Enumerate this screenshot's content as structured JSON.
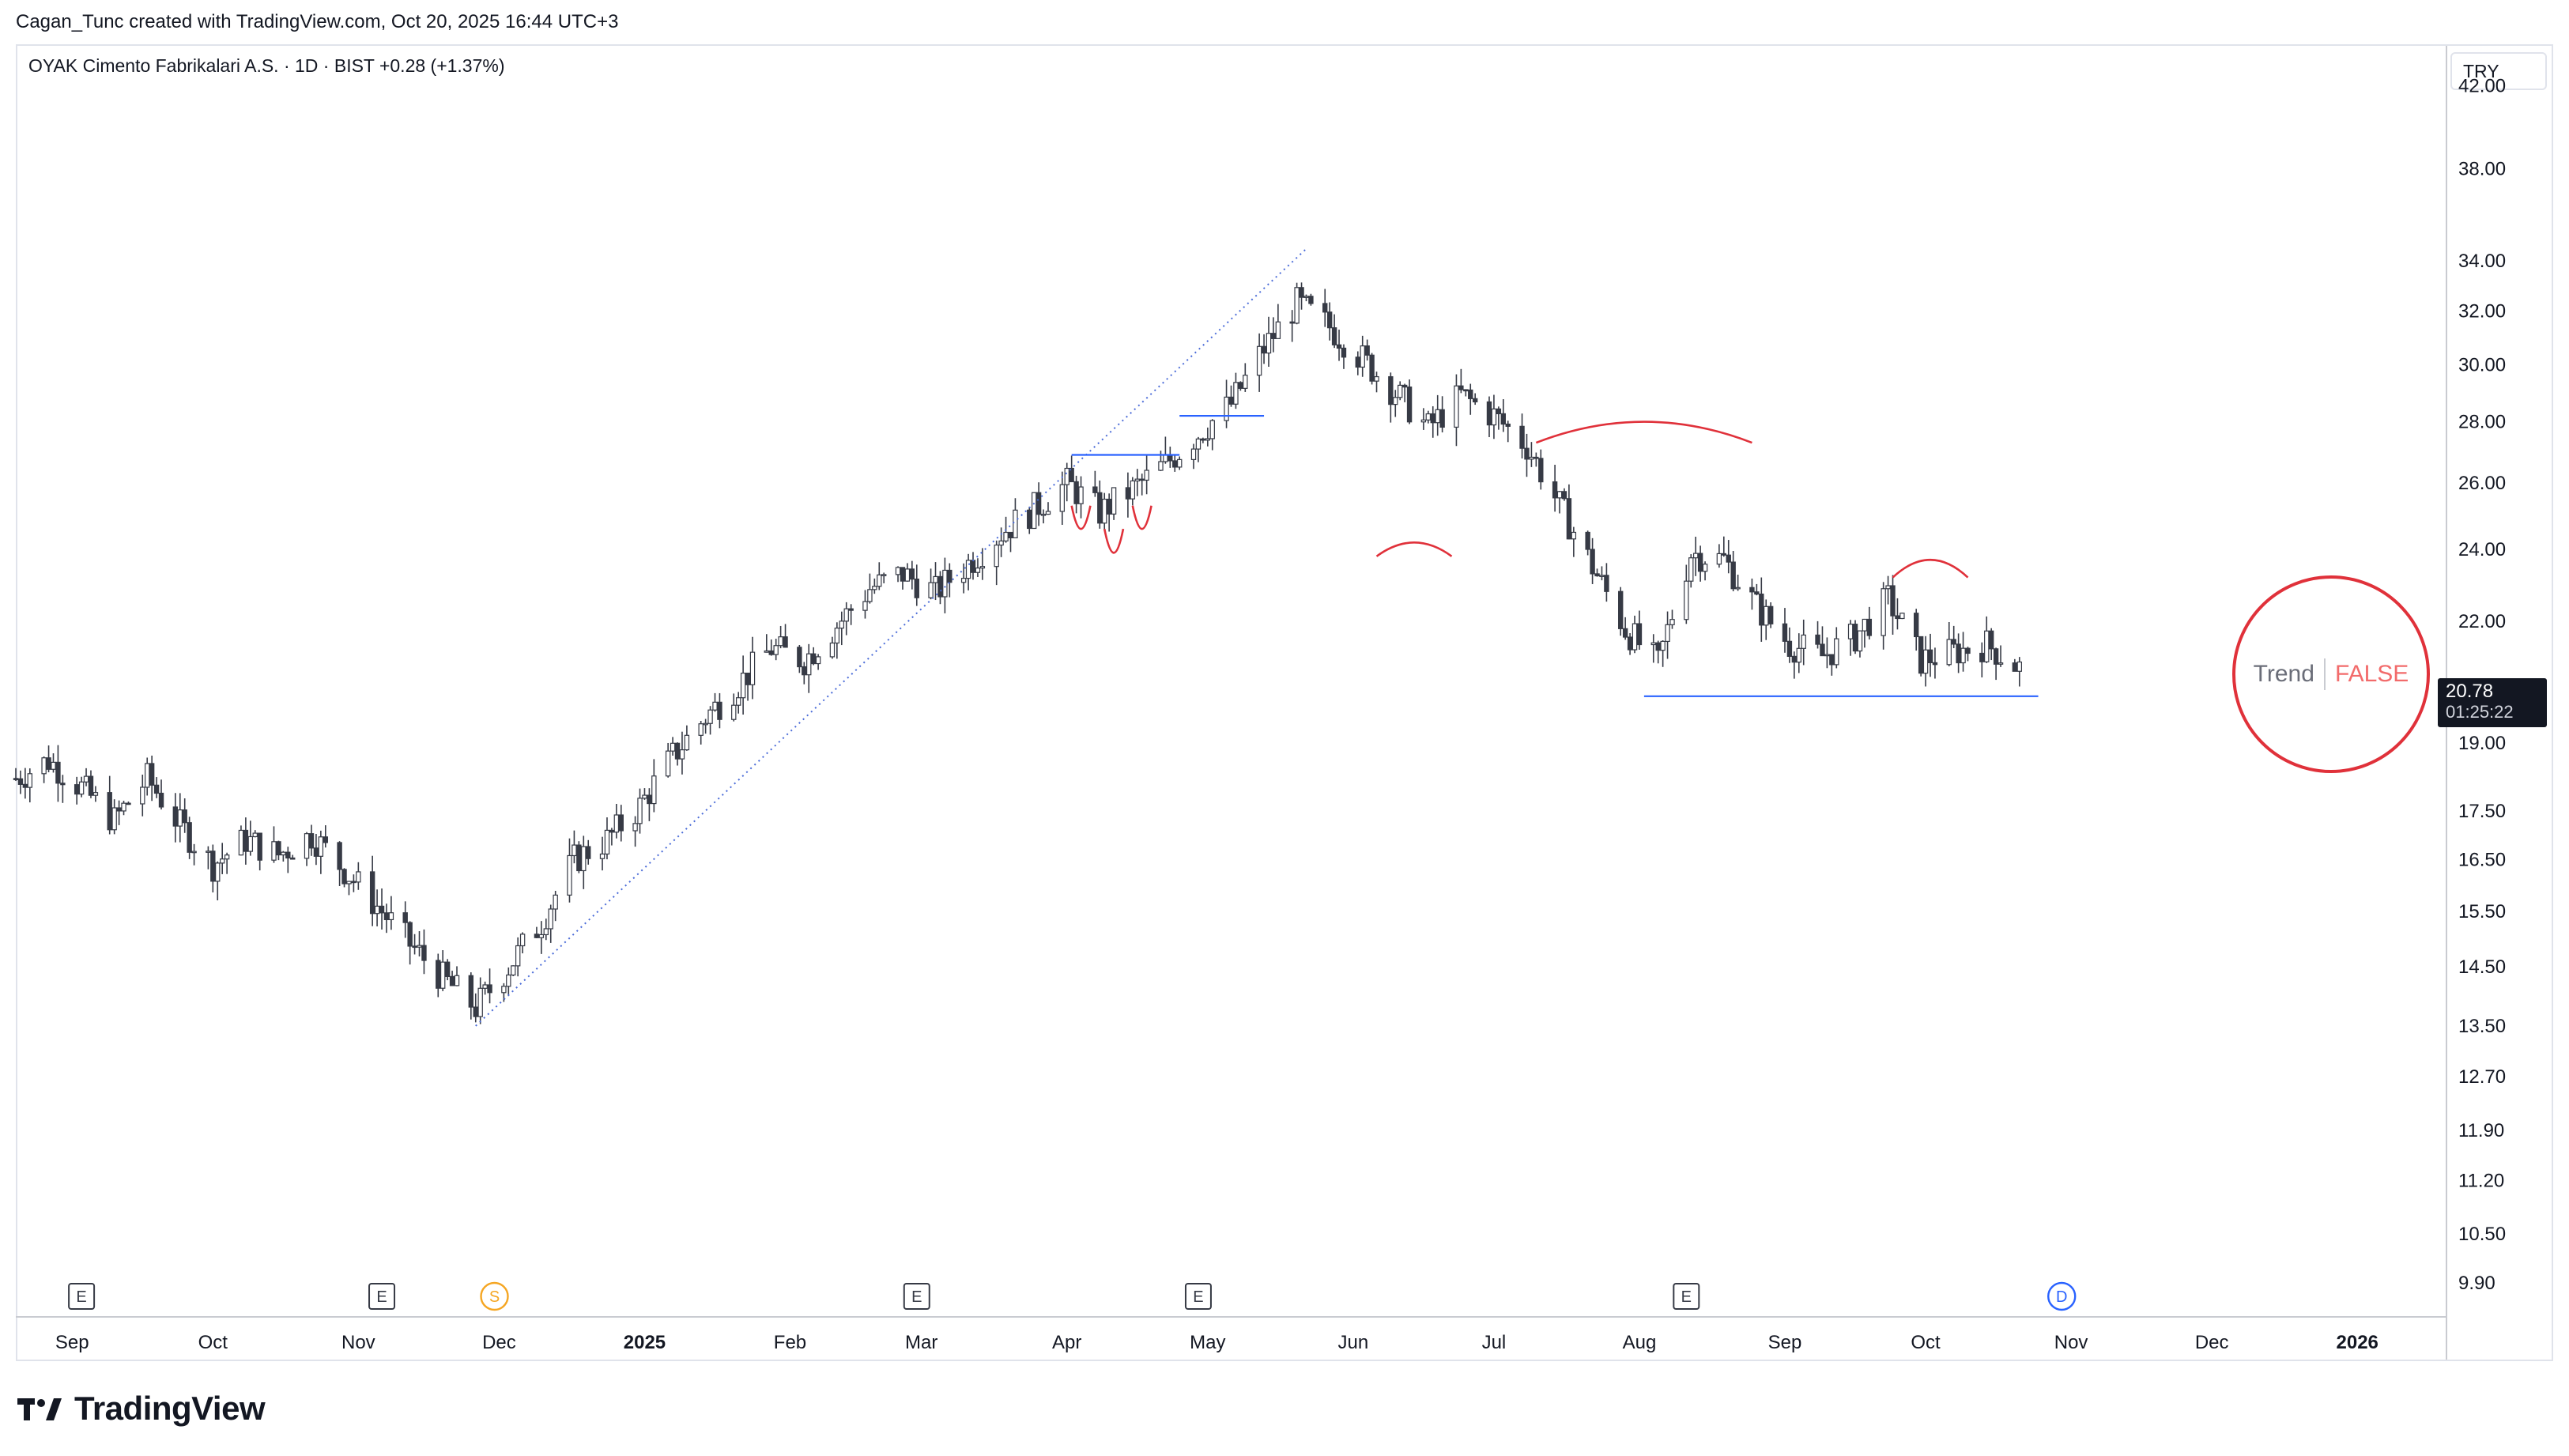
{
  "header": {
    "attribution": "Cagan_Tunc created with TradingView.com, Oct 20, 2025 16:44 UTC+3"
  },
  "legend": {
    "symbol": "OYAK Cimento Fabrikalari A.S. · 1D · BIST",
    "change": "+0.28 (+1.37%)"
  },
  "currency": "TRY",
  "indicator": {
    "label": "Trend",
    "value": "FALSE",
    "color": "#e0313a"
  },
  "last_price": {
    "price": "20.78",
    "countdown": "01:25:22"
  },
  "branding": {
    "wordmark": "TradingView",
    "icon": "tradingview-logo-icon"
  },
  "colors": {
    "candle": "#363a45",
    "blue_line": "#2962ff",
    "red_arc": "#e0313a",
    "trend_dots": "#4a6bd8"
  },
  "chart_data": {
    "type": "candlestick",
    "y_scale": "log",
    "ylim": [
      9.5,
      44.0
    ],
    "y_ticks": [
      42.0,
      38.0,
      34.0,
      32.0,
      30.0,
      28.0,
      26.0,
      24.0,
      22.0,
      19.0,
      17.5,
      16.5,
      15.5,
      14.5,
      13.5,
      12.7,
      11.9,
      11.2,
      10.5,
      9.9
    ],
    "y_tick_labels": [
      "42.00",
      "38.00",
      "34.00",
      "32.00",
      "30.00",
      "28.00",
      "26.00",
      "24.00",
      "22.00",
      "19.00",
      "17.50",
      "16.50",
      "15.50",
      "14.50",
      "13.50",
      "12.70",
      "11.90",
      "11.20",
      "10.50",
      "9.90"
    ],
    "x_range": [
      "2024-08-20",
      "2026-01-20"
    ],
    "x_ticks": [
      {
        "date": "2024-09-01",
        "label": "Sep"
      },
      {
        "date": "2024-10-01",
        "label": "Oct"
      },
      {
        "date": "2024-11-01",
        "label": "Nov"
      },
      {
        "date": "2024-12-01",
        "label": "Dec"
      },
      {
        "date": "2025-01-01",
        "label": "2025",
        "bold": true
      },
      {
        "date": "2025-02-01",
        "label": "Feb"
      },
      {
        "date": "2025-03-01",
        "label": "Mar"
      },
      {
        "date": "2025-04-01",
        "label": "Apr"
      },
      {
        "date": "2025-05-01",
        "label": "May"
      },
      {
        "date": "2025-06-01",
        "label": "Jun"
      },
      {
        "date": "2025-07-01",
        "label": "Jul"
      },
      {
        "date": "2025-08-01",
        "label": "Aug"
      },
      {
        "date": "2025-09-01",
        "label": "Sep"
      },
      {
        "date": "2025-10-01",
        "label": "Oct"
      },
      {
        "date": "2025-11-01",
        "label": "Nov"
      },
      {
        "date": "2025-12-01",
        "label": "Dec"
      },
      {
        "date": "2026-01-01",
        "label": "2026",
        "bold": true
      }
    ],
    "price_path": [
      [
        "2024-08-20",
        18.2
      ],
      [
        "2024-08-27",
        18.6
      ],
      [
        "2024-09-03",
        18.0
      ],
      [
        "2024-09-10",
        17.3
      ],
      [
        "2024-09-17",
        18.2
      ],
      [
        "2024-09-24",
        17.2
      ],
      [
        "2024-10-01",
        16.4
      ],
      [
        "2024-10-08",
        16.9
      ],
      [
        "2024-10-15",
        16.6
      ],
      [
        "2024-10-22",
        17.0
      ],
      [
        "2024-10-29",
        16.3
      ],
      [
        "2024-11-05",
        15.6
      ],
      [
        "2024-11-12",
        14.9
      ],
      [
        "2024-11-19",
        14.3
      ],
      [
        "2024-11-26",
        13.8
      ],
      [
        "2024-12-03",
        14.5
      ],
      [
        "2024-12-10",
        15.3
      ],
      [
        "2024-12-17",
        16.5
      ],
      [
        "2024-12-24",
        16.9
      ],
      [
        "2024-12-31",
        17.6
      ],
      [
        "2025-01-07",
        18.7
      ],
      [
        "2025-01-14",
        19.6
      ],
      [
        "2025-01-21",
        20.4
      ],
      [
        "2025-01-28",
        21.3
      ],
      [
        "2025-02-04",
        21.0
      ],
      [
        "2025-02-11",
        21.9
      ],
      [
        "2025-02-18",
        22.9
      ],
      [
        "2025-02-25",
        23.3
      ],
      [
        "2025-03-04",
        22.8
      ],
      [
        "2025-03-11",
        23.6
      ],
      [
        "2025-03-18",
        24.5
      ],
      [
        "2025-03-25",
        25.2
      ],
      [
        "2025-04-01",
        26.0
      ],
      [
        "2025-04-08",
        25.1
      ],
      [
        "2025-04-15",
        25.8
      ],
      [
        "2025-04-22",
        26.6
      ],
      [
        "2025-04-29",
        27.6
      ],
      [
        "2025-05-06",
        28.6
      ],
      [
        "2025-05-13",
        30.6
      ],
      [
        "2025-05-20",
        32.3
      ],
      [
        "2025-05-27",
        31.4
      ],
      [
        "2025-06-03",
        30.2
      ],
      [
        "2025-06-10",
        29.0
      ],
      [
        "2025-06-17",
        27.8
      ],
      [
        "2025-06-24",
        28.9
      ],
      [
        "2025-07-01",
        28.2
      ],
      [
        "2025-07-08",
        27.2
      ],
      [
        "2025-07-15",
        25.3
      ],
      [
        "2025-07-22",
        23.5
      ],
      [
        "2025-07-29",
        21.8
      ],
      [
        "2025-08-05",
        20.9
      ],
      [
        "2025-08-12",
        23.9
      ],
      [
        "2025-08-19",
        23.7
      ],
      [
        "2025-08-26",
        22.4
      ],
      [
        "2025-09-02",
        21.4
      ],
      [
        "2025-09-09",
        21.1
      ],
      [
        "2025-09-16",
        21.6
      ],
      [
        "2025-09-23",
        22.6
      ],
      [
        "2025-09-30",
        21.0
      ],
      [
        "2025-10-07",
        21.2
      ],
      [
        "2025-10-14",
        21.4
      ],
      [
        "2025-10-21",
        20.8
      ]
    ],
    "annotations": {
      "trendline": {
        "from": [
          "2024-11-26",
          13.5
        ],
        "to": [
          "2025-05-22",
          34.5
        ]
      },
      "support_line": {
        "from": [
          "2025-08-02",
          20.1
        ],
        "to": [
          "2025-10-25",
          20.1
        ]
      },
      "resistance_lines": [
        {
          "from": [
            "2025-04-02",
            26.9
          ],
          "to": [
            "2025-04-25",
            26.9
          ]
        },
        {
          "from": [
            "2025-04-25",
            28.2
          ],
          "to": [
            "2025-05-13",
            28.2
          ]
        }
      ],
      "arcs": [
        {
          "from": [
            "2025-06-06",
            23.8
          ],
          "to": [
            "2025-06-22",
            23.8
          ],
          "peak": 24.2
        },
        {
          "from": [
            "2025-07-10",
            27.3
          ],
          "to": [
            "2025-08-25",
            27.3
          ],
          "peak": 28.0
        },
        {
          "from": [
            "2025-09-24",
            23.2
          ],
          "to": [
            "2025-10-10",
            23.2
          ],
          "peak": 23.7
        }
      ],
      "small_arcs": [
        {
          "from": [
            "2025-04-02",
            25.3
          ],
          "to": [
            "2025-04-06",
            25.3
          ],
          "dip": 24.6
        },
        {
          "from": [
            "2025-04-09",
            24.6
          ],
          "to": [
            "2025-04-13",
            24.6
          ],
          "dip": 23.9
        },
        {
          "from": [
            "2025-04-15",
            25.3
          ],
          "to": [
            "2025-04-19",
            25.3
          ],
          "dip": 24.6
        }
      ]
    },
    "events": [
      {
        "date": "2024-09-03",
        "type": "E"
      },
      {
        "date": "2024-11-06",
        "type": "E"
      },
      {
        "date": "2024-11-30",
        "type": "S"
      },
      {
        "date": "2025-02-28",
        "type": "E"
      },
      {
        "date": "2025-04-29",
        "type": "E"
      },
      {
        "date": "2025-08-11",
        "type": "E"
      },
      {
        "date": "2025-10-30",
        "type": "D"
      }
    ]
  }
}
